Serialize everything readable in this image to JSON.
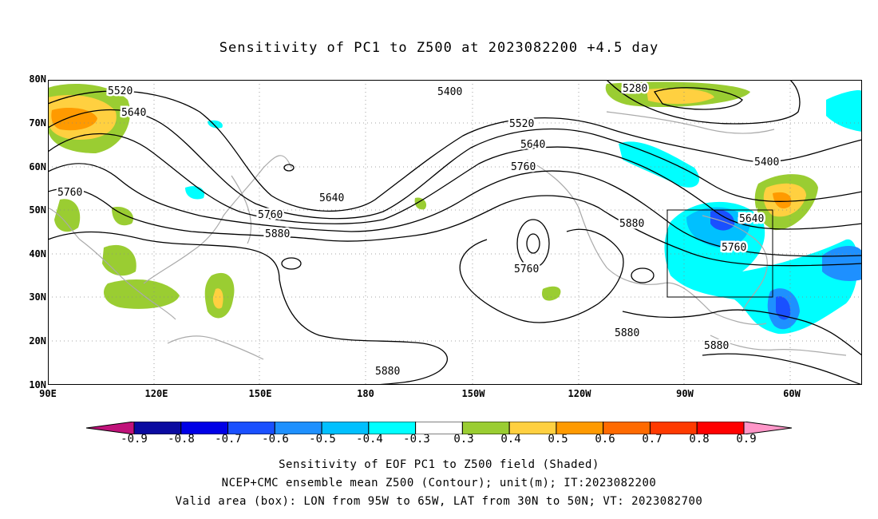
{
  "title": "Sensitivity of PC1 to Z500 at 2023082200 +4.5 day",
  "lat_labels": [
    "80N",
    "70N",
    "60N",
    "50N",
    "40N",
    "30N",
    "20N",
    "10N"
  ],
  "lon_labels": [
    "90E",
    "120E",
    "150E",
    "180",
    "150W",
    "120W",
    "90W",
    "60W"
  ],
  "contour_labels": [
    "5520",
    "5640",
    "5400",
    "5280",
    "5520",
    "5640",
    "5760",
    "5400",
    "5760",
    "5640",
    "5760",
    "5880",
    "5880",
    "5640",
    "5760",
    "5760",
    "5880",
    "5880",
    "5880"
  ],
  "colorbar": {
    "labels": [
      "-0.9",
      "-0.8",
      "-0.7",
      "-0.6",
      "-0.5",
      "-0.4",
      "-0.3",
      "0.3",
      "0.4",
      "0.5",
      "0.6",
      "0.7",
      "0.8",
      "0.9"
    ],
    "colors": [
      "#c0127a",
      "#0a0aa0",
      "#0000e6",
      "#1a50ff",
      "#1e90ff",
      "#00c0ff",
      "#00ffff",
      "#ffffff",
      "#9acd32",
      "#ffd040",
      "#ff9a00",
      "#ff6a00",
      "#ff3a00",
      "#ff0000",
      "#ff96c8"
    ]
  },
  "captions": [
    "Sensitivity of EOF PC1 to Z500 field (Shaded)",
    "NCEP+CMC ensemble mean Z500 (Contour); unit(m); IT:2023082200",
    "Valid area (box): LON from 95W to 65W, LAT from 30N to 50N; VT: 2023082700"
  ]
}
